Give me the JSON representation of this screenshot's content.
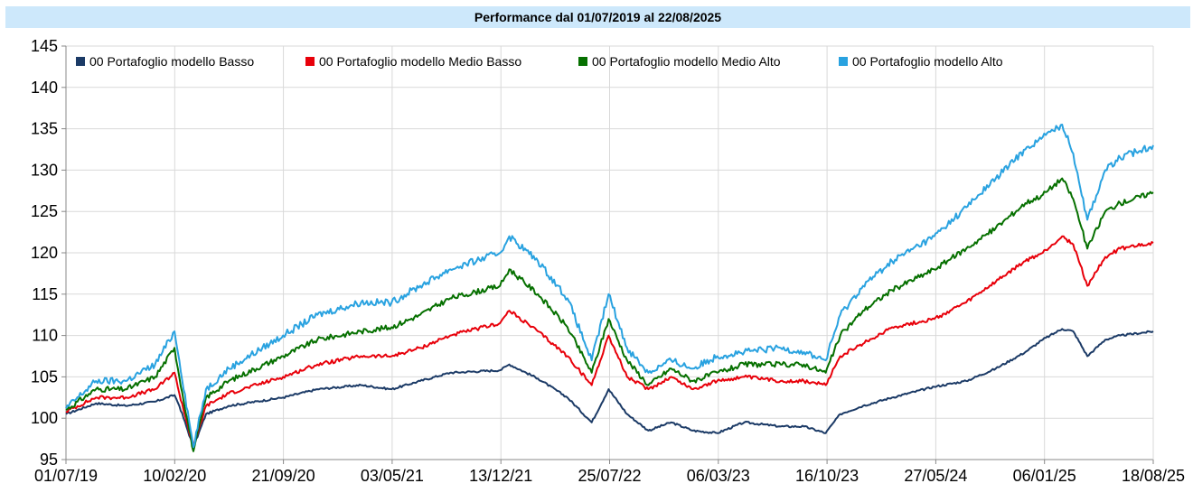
{
  "chart_data": {
    "type": "line",
    "title": "Performance dal 01/07/2019 al 22/08/2025",
    "ylim": [
      95,
      145
    ],
    "yticks": [
      95,
      100,
      105,
      110,
      115,
      120,
      125,
      130,
      135,
      140,
      145
    ],
    "xtick_labels": [
      "01/07/19",
      "10/02/20",
      "21/09/20",
      "03/05/21",
      "13/12/21",
      "25/07/22",
      "06/03/23",
      "16/10/23",
      "27/05/24",
      "06/01/25",
      "18/08/25"
    ],
    "grid": true,
    "legend_position": "top-left",
    "x": [
      "2019-07-01",
      "2019-09-01",
      "2019-11-01",
      "2020-01-01",
      "2020-02-10",
      "2020-02-20",
      "2020-03-20",
      "2020-04-15",
      "2020-06-01",
      "2020-09-21",
      "2020-12-01",
      "2021-03-01",
      "2021-05-03",
      "2021-07-01",
      "2021-09-01",
      "2021-12-13",
      "2022-01-01",
      "2022-03-01",
      "2022-05-01",
      "2022-06-20",
      "2022-07-25",
      "2022-09-01",
      "2022-10-15",
      "2022-12-01",
      "2023-01-15",
      "2023-03-06",
      "2023-05-01",
      "2023-07-15",
      "2023-09-01",
      "2023-10-16",
      "2023-11-15",
      "2024-01-01",
      "2024-03-01",
      "2024-05-27",
      "2024-08-01",
      "2024-10-01",
      "2024-12-01",
      "2025-01-06",
      "2025-02-15",
      "2025-03-10",
      "2025-04-08",
      "2025-05-15",
      "2025-06-15",
      "2025-08-22"
    ],
    "series": [
      {
        "name": "00 Portafoglio modello Basso",
        "color": "#1b3a66",
        "values": [
          100.5,
          101.8,
          101.5,
          102.0,
          102.8,
          101.5,
          96.5,
          100.5,
          101.5,
          102.5,
          103.5,
          104.0,
          103.5,
          104.5,
          105.5,
          105.8,
          106.5,
          104.8,
          102.5,
          99.5,
          103.5,
          100.5,
          98.5,
          99.5,
          98.5,
          98.2,
          99.5,
          99.0,
          99.0,
          98.2,
          100.5,
          101.5,
          102.5,
          103.8,
          104.5,
          106.0,
          108.0,
          109.5,
          110.8,
          110.5,
          107.5,
          109.5,
          110.0,
          110.5
        ]
      },
      {
        "name": "00 Portafoglio modello Medio Basso",
        "color": "#e8000a",
        "values": [
          100.8,
          102.5,
          102.5,
          103.5,
          105.5,
          103.0,
          96.5,
          101.5,
          103.0,
          105.0,
          106.5,
          107.5,
          107.5,
          108.5,
          110.0,
          111.5,
          113.0,
          110.5,
          107.5,
          104.0,
          110.0,
          105.0,
          103.5,
          105.0,
          103.5,
          104.5,
          105.0,
          104.5,
          104.5,
          104.0,
          107.5,
          109.0,
          111.0,
          112.0,
          114.0,
          116.5,
          119.0,
          120.0,
          122.0,
          121.0,
          116.0,
          119.5,
          120.5,
          121.2
        ]
      },
      {
        "name": "00 Portafoglio modello Medio Alto",
        "color": "#067000",
        "values": [
          101.0,
          103.5,
          103.5,
          105.0,
          108.5,
          105.0,
          96.0,
          102.5,
          104.5,
          107.5,
          109.5,
          110.5,
          111.0,
          112.5,
          114.5,
          116.0,
          118.0,
          115.0,
          111.0,
          105.5,
          112.0,
          107.0,
          104.0,
          106.0,
          104.5,
          105.5,
          106.5,
          106.5,
          106.5,
          105.5,
          110.0,
          113.0,
          115.5,
          118.0,
          120.5,
          123.0,
          126.0,
          127.0,
          129.0,
          126.5,
          120.5,
          125.0,
          126.0,
          127.3
        ]
      },
      {
        "name": "00 Portafoglio modello Alto",
        "color": "#29a2e0",
        "values": [
          101.2,
          104.5,
          104.5,
          106.5,
          110.5,
          107.0,
          96.5,
          103.5,
          106.0,
          110.0,
          112.5,
          114.0,
          114.0,
          116.0,
          118.0,
          120.0,
          122.0,
          119.0,
          114.5,
          107.0,
          115.0,
          108.5,
          105.5,
          107.0,
          106.0,
          107.5,
          108.0,
          108.5,
          108.0,
          107.0,
          112.5,
          116.0,
          119.0,
          122.0,
          125.5,
          129.0,
          132.5,
          134.0,
          135.5,
          132.0,
          124.0,
          130.0,
          131.5,
          133.0
        ]
      }
    ]
  }
}
